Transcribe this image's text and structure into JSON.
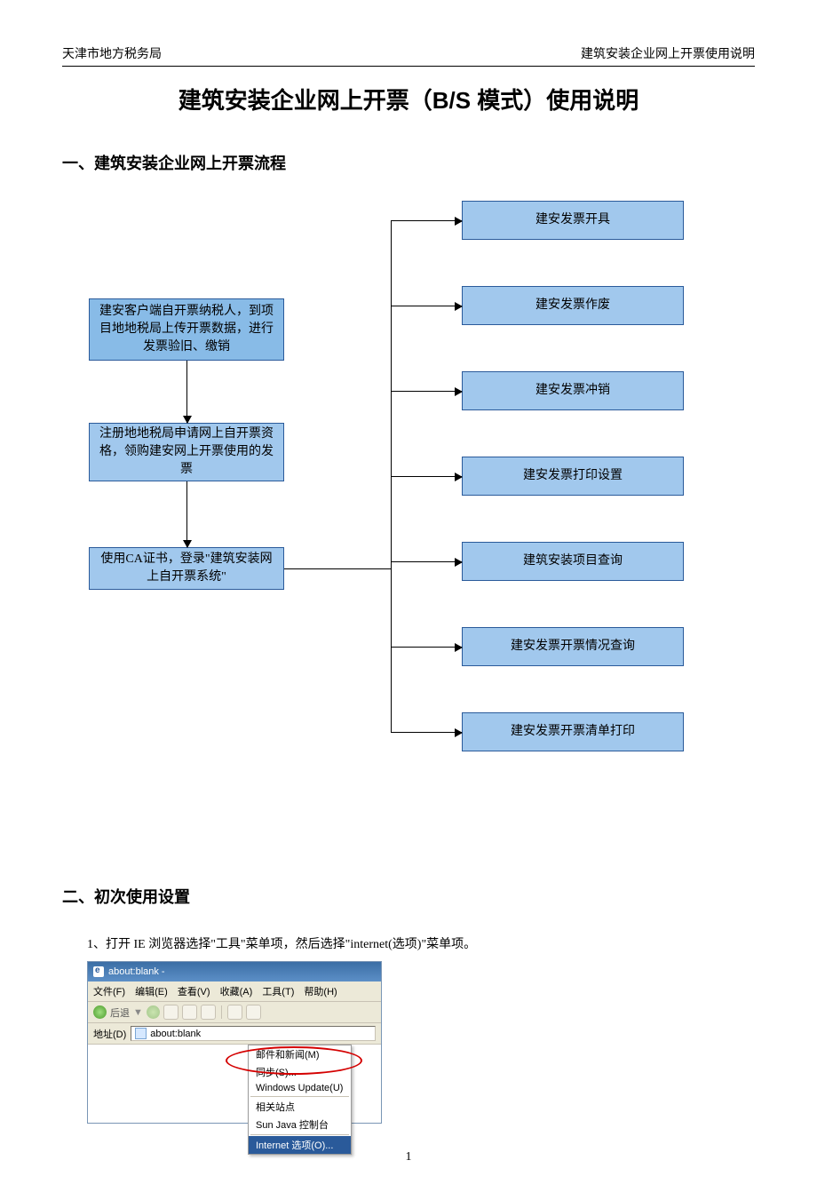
{
  "header": {
    "left": "天津市地方税务局",
    "right": "建筑安装企业网上开票使用说明"
  },
  "title": "建筑安装企业网上开票（B/S 模式）使用说明",
  "section1": "一、建筑安装企业网上开票流程",
  "flow": {
    "node_fill": "#a1c8ed",
    "node_border": "#2a5a9a",
    "dark_fill": "#88bbe7",
    "left": [
      "建安客户端自开票纳税人，到项目地地税局上传开票数据，进行发票验旧、缴销",
      "注册地地税局申请网上自开票资格，领购建安网上开票使用的发票",
      "使用CA证书，登录\"建筑安装网上自开票系统\""
    ],
    "right": [
      "建安发票开具",
      "建安发票作废",
      "建安发票冲销",
      "建安发票打印设置",
      "建筑安装项目查询",
      "建安发票开票情况查询",
      "建安发票开票清单打印"
    ]
  },
  "section2": "二、初次使用设置",
  "step1": "1、打开 IE 浏览器选择\"工具\"菜单项，然后选择\"internet(选项)\"菜单项。",
  "ie": {
    "title": "about:blank -",
    "menus": [
      "文件(F)",
      "编辑(E)",
      "查看(V)",
      "收藏(A)",
      "工具(T)",
      "帮助(H)"
    ],
    "back": "后退",
    "addr_label": "地址(D)",
    "addr_value": "about:blank",
    "dropdown": [
      "邮件和新闻(M)",
      "同步(S)...",
      "Windows Update(U)",
      "相关站点",
      "Sun Java 控制台",
      "Internet 选项(O)..."
    ]
  },
  "pagenum": "1"
}
